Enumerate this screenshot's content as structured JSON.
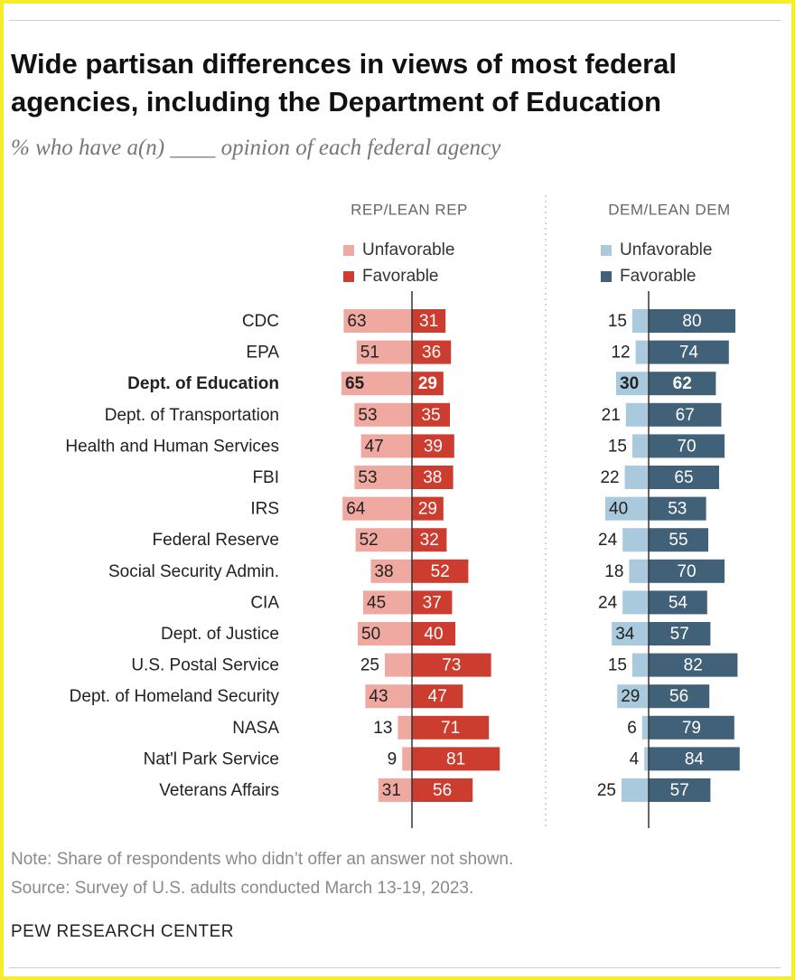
{
  "title": "Wide partisan differences in views of most federal agencies, including the Department of Education",
  "subtitle": "% who have a(n) ____ opinion of each federal agency",
  "colors": {
    "rep_unfavorable": "#efa9a0",
    "rep_favorable": "#cd3d2f",
    "dem_unfavorable": "#a9c9dc",
    "dem_favorable": "#416179"
  },
  "chart_data": {
    "type": "bar",
    "orientation": "horizontal-diverging",
    "categories": [
      "CDC",
      "EPA",
      "Dept. of Education",
      "Dept. of Transportation",
      "Health and Human Services",
      "FBI",
      "IRS",
      "Federal Reserve",
      "Social Security Admin.",
      "CIA",
      "Dept. of Justice",
      "U.S. Postal Service",
      "Dept. of Homeland Security",
      "NASA",
      "Nat'l Park Service",
      "Veterans Affairs"
    ],
    "highlight_category": "Dept. of Education",
    "panels": [
      {
        "heading": "REP/LEAN REP",
        "legend": [
          "Unfavorable",
          "Favorable"
        ],
        "series": [
          {
            "name": "Unfavorable",
            "values": [
              63,
              51,
              65,
              53,
              47,
              53,
              64,
              52,
              38,
              45,
              50,
              25,
              43,
              13,
              9,
              31
            ]
          },
          {
            "name": "Favorable",
            "values": [
              31,
              36,
              29,
              35,
              39,
              38,
              29,
              32,
              52,
              37,
              40,
              73,
              47,
              71,
              81,
              56
            ]
          }
        ]
      },
      {
        "heading": "DEM/LEAN DEM",
        "legend": [
          "Unfavorable",
          "Favorable"
        ],
        "series": [
          {
            "name": "Unfavorable",
            "values": [
              15,
              12,
              30,
              21,
              15,
              22,
              40,
              24,
              18,
              24,
              34,
              15,
              29,
              6,
              4,
              25
            ]
          },
          {
            "name": "Favorable",
            "values": [
              80,
              74,
              62,
              67,
              70,
              65,
              53,
              55,
              70,
              54,
              57,
              82,
              56,
              79,
              84,
              57
            ]
          }
        ]
      }
    ]
  },
  "notes": {
    "note": "Note: Share of respondents who didn’t offer an answer not shown.",
    "source": "Source: Survey of U.S. adults conducted March 13-19, 2023.",
    "brand": "PEW RESEARCH CENTER"
  }
}
